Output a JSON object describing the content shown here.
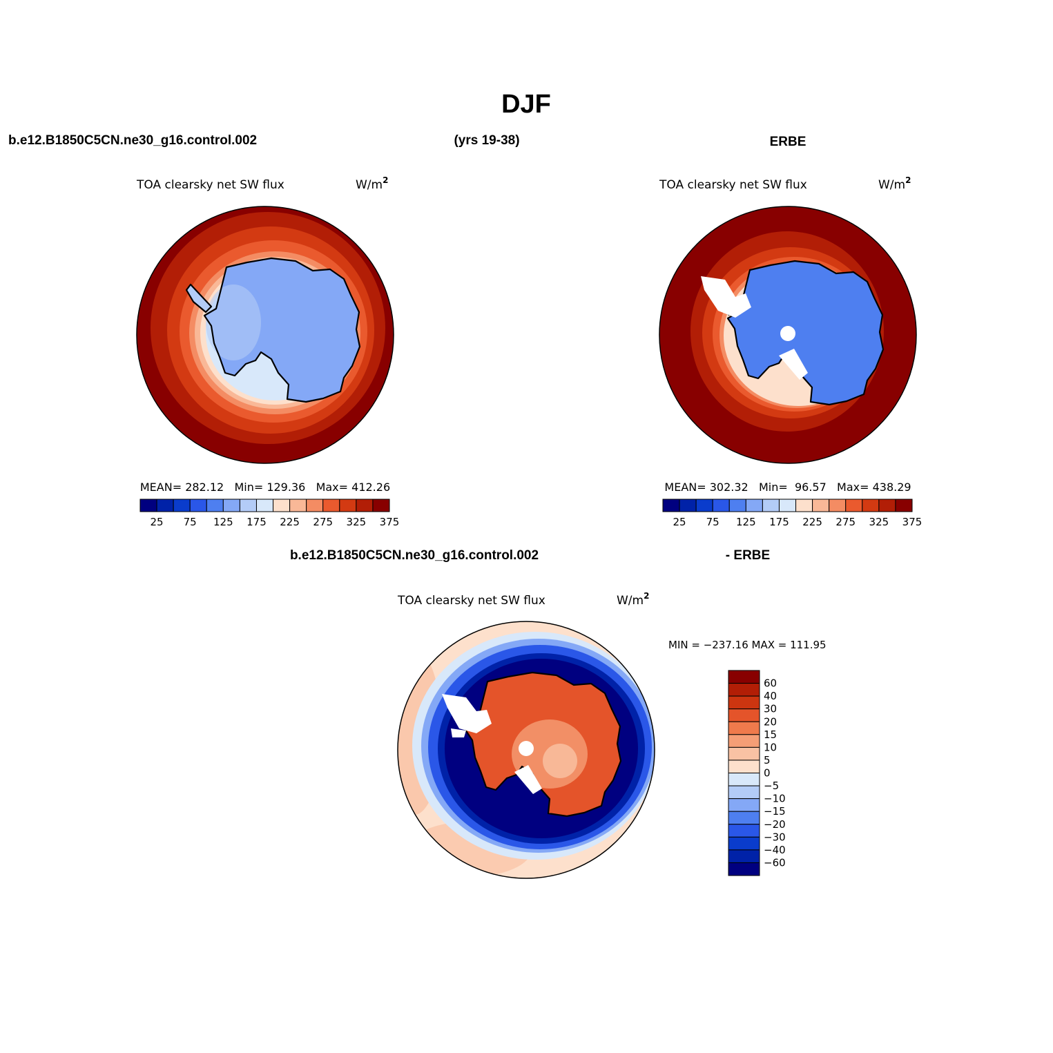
{
  "figure": {
    "title": "DJF",
    "case_name_left": "b.e12.B1850C5CN.ne30_g16.control.002",
    "years": "(yrs 19-38)",
    "obs_name": "ERBE",
    "diff_case_name": "b.e12.B1850C5CN.ne30_g16.control.002",
    "diff_obs_name": "- ERBE"
  },
  "panels": {
    "model": {
      "variable": "TOA clearsky net SW flux",
      "units_base": "W/m",
      "units_exp": "2",
      "stats": "MEAN= 282.12   Min= 129.36   Max= 412.26"
    },
    "obs": {
      "variable": "TOA clearsky net SW flux",
      "units_base": "W/m",
      "units_exp": "2",
      "stats": "MEAN= 302.32   Min=  96.57   Max= 438.29"
    },
    "diff": {
      "variable": "TOA clearsky net SW flux",
      "units_base": "W/m",
      "units_exp": "2",
      "stats": "MIN = −237.16 MAX = 111.95"
    }
  },
  "colorbars": {
    "absolute": {
      "colors": [
        "#000080",
        "#0022a8",
        "#0a3ccc",
        "#2a57e8",
        "#4e7ff0",
        "#84a8f6",
        "#b3ccf7",
        "#d8e8fa",
        "#fde0cc",
        "#f9b897",
        "#f48c63",
        "#ea5a2e",
        "#d33a12",
        "#b21e06",
        "#880000"
      ],
      "tick_labels": [
        "25",
        "75",
        "125",
        "175",
        "225",
        "275",
        "325",
        "375"
      ]
    },
    "difference": {
      "colors": [
        "#000080",
        "#0022a8",
        "#0a3ccc",
        "#2a57e8",
        "#4e7ff0",
        "#84a8f6",
        "#b3ccf7",
        "#d8e8fa",
        "#fde0cc",
        "#f9c2a4",
        "#f59e76",
        "#ef7a4c",
        "#e4542a",
        "#cc3510",
        "#b21e06",
        "#880000"
      ],
      "tick_labels": [
        "60",
        "40",
        "30",
        "20",
        "15",
        "10",
        "5",
        "0",
        "−5",
        "−10",
        "−15",
        "−20",
        "−30",
        "−40",
        "−60"
      ]
    }
  }
}
